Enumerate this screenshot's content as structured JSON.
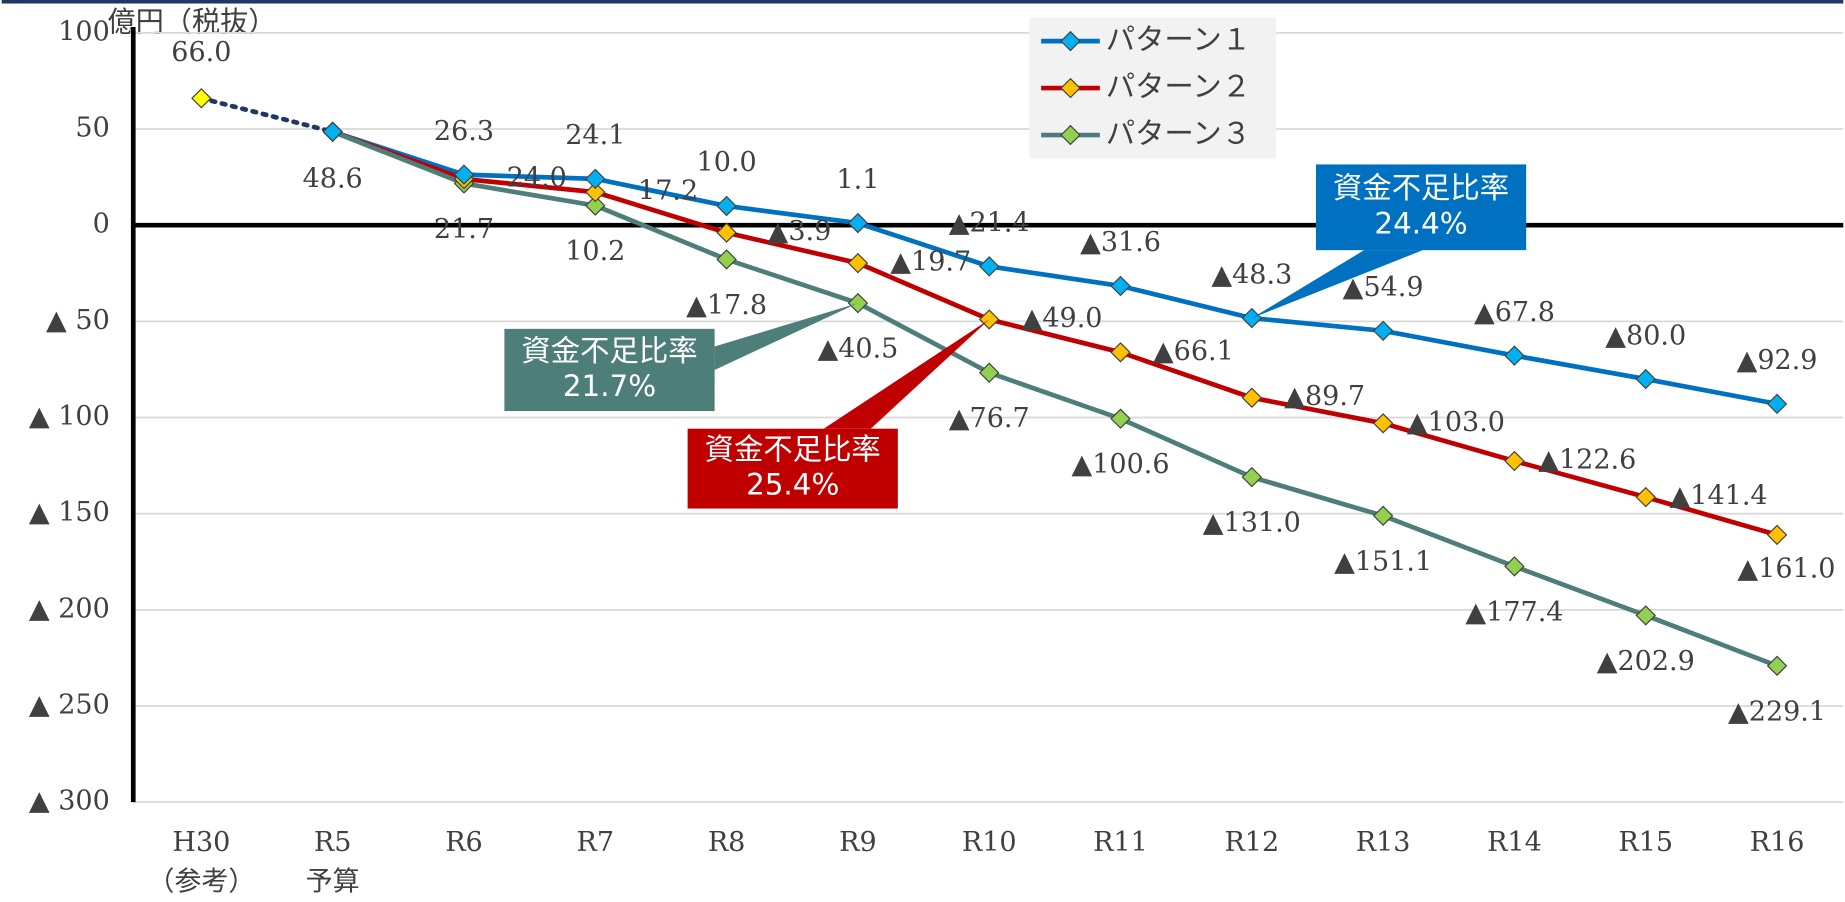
{
  "chart_data": {
    "type": "line",
    "y_axis_label": "億円（税抜）",
    "categories": [
      [
        "H30",
        "（参考）"
      ],
      [
        "R5",
        "予算"
      ],
      [
        "R6"
      ],
      [
        "R7"
      ],
      [
        "R8"
      ],
      [
        "R9"
      ],
      [
        "R10"
      ],
      [
        "R11"
      ],
      [
        "R12"
      ],
      [
        "R13"
      ],
      [
        "R14"
      ],
      [
        "R15"
      ],
      [
        "R16"
      ]
    ],
    "ylim": [
      -300,
      100
    ],
    "yticks": [
      {
        "value": -300,
        "label": "▲ 300"
      },
      {
        "value": -250,
        "label": "▲ 250"
      },
      {
        "value": -200,
        "label": "▲ 200"
      },
      {
        "value": -150,
        "label": "▲ 150"
      },
      {
        "value": -100,
        "label": "▲ 100"
      },
      {
        "value": -50,
        "label": "▲ 50"
      },
      0,
      50,
      100
    ],
    "grid": true,
    "reference": {
      "color": "#ffff00",
      "line_color": "#1f3864",
      "values": [
        66.0,
        48.6,
        null,
        null,
        null,
        null,
        null,
        null,
        null,
        null,
        null,
        null,
        null
      ],
      "value_labels": [
        "66.0",
        null,
        null,
        null,
        null,
        null,
        null,
        null,
        null,
        null,
        null,
        null,
        null
      ]
    },
    "series": [
      {
        "name": "パターン１",
        "color": "#0070c0",
        "marker_color": "#00b0f0",
        "values": [
          null,
          48.6,
          26.3,
          24.1,
          10.0,
          1.1,
          -21.4,
          -31.6,
          -48.3,
          -54.9,
          -67.8,
          -80.0,
          -92.9
        ],
        "value_labels": [
          null,
          "48.6",
          "26.3",
          "24.1",
          "10.0",
          "1.1",
          "▲21.4",
          "▲31.6",
          "▲48.3",
          "▲54.9",
          "▲67.8",
          "▲80.0",
          "▲92.9"
        ]
      },
      {
        "name": "パターン２",
        "color": "#c00000",
        "marker_color": "#ffc000",
        "values": [
          null,
          48.6,
          24.0,
          17.2,
          -3.9,
          -19.7,
          -49.0,
          -66.1,
          -89.7,
          -103.0,
          -122.6,
          -141.4,
          -161.0
        ],
        "value_labels": [
          null,
          null,
          "24.0",
          "17.2",
          "▲3.9",
          "▲19.7",
          "▲49.0",
          "▲66.1",
          "▲89.7",
          "▲103.0",
          "▲122.6",
          "▲141.4",
          "▲161.0"
        ]
      },
      {
        "name": "パターン３",
        "color": "#4e7e7a",
        "marker_color": "#92d050",
        "values": [
          null,
          48.6,
          21.7,
          10.2,
          -17.8,
          -40.5,
          -76.7,
          -100.6,
          -131.0,
          -151.1,
          -177.4,
          -202.9,
          -229.1
        ],
        "value_labels": [
          null,
          null,
          "21.7",
          "10.2",
          "▲17.8",
          "▲40.5",
          "▲76.7",
          "▲100.6",
          "▲131.0",
          "▲151.1",
          "▲177.4",
          "▲202.9",
          "▲229.1"
        ]
      }
    ],
    "annotations": [
      {
        "text": [
          "資金不足比率",
          "24.4%"
        ],
        "color": "#0070c0"
      },
      {
        "text": [
          "資金不足比率",
          "25.4%"
        ],
        "color": "#c00000"
      },
      {
        "text": [
          "資金不足比率",
          "21.7%"
        ],
        "color": "#4e7e7a"
      }
    ]
  }
}
